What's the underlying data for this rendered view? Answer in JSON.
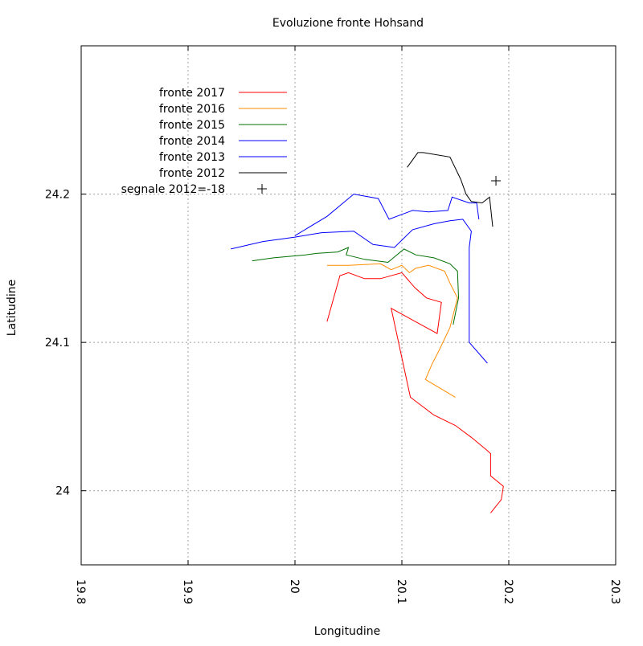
{
  "chart_data": {
    "type": "line",
    "title": "Evoluzione fronte Hohsand",
    "xlabel": "Longitudine",
    "ylabel": "Latitudine",
    "xlim": [
      19.8,
      20.3
    ],
    "ylim": [
      23.95,
      24.3
    ],
    "x_ticks": [
      19.8,
      19.9,
      20.0,
      20.1,
      20.2,
      20.3
    ],
    "x_tick_labels": [
      "19.8",
      "19.9",
      "20",
      "20.1",
      "20.2",
      "20.3"
    ],
    "y_ticks": [
      24.0,
      24.1,
      24.2
    ],
    "y_tick_labels": [
      "24",
      "24.1",
      "24.2"
    ],
    "grid": true,
    "legend_position": "top-left",
    "series": [
      {
        "name": "fronte 2017",
        "color": "#ff0000",
        "points": [
          [
            20.03,
            24.114
          ],
          [
            20.042,
            24.145
          ],
          [
            20.05,
            24.147
          ],
          [
            20.065,
            24.143
          ],
          [
            20.08,
            24.143
          ],
          [
            20.1,
            24.147
          ],
          [
            20.112,
            24.137
          ],
          [
            20.123,
            24.13
          ],
          [
            20.137,
            24.127
          ],
          [
            20.133,
            24.106
          ],
          [
            20.09,
            24.123
          ],
          [
            20.108,
            24.063
          ],
          [
            20.13,
            24.051
          ],
          [
            20.15,
            24.044
          ],
          [
            20.165,
            24.036
          ],
          [
            20.18,
            24.027
          ],
          [
            20.183,
            24.025
          ],
          [
            20.183,
            24.01
          ],
          [
            20.195,
            24.003
          ],
          [
            20.193,
            23.994
          ],
          [
            20.183,
            23.985
          ]
        ]
      },
      {
        "name": "fronte 2016",
        "color": "#ff8c00",
        "points": [
          [
            20.03,
            24.152
          ],
          [
            20.05,
            24.152
          ],
          [
            20.08,
            24.153
          ],
          [
            20.09,
            24.149
          ],
          [
            20.1,
            24.152
          ],
          [
            20.107,
            24.147
          ],
          [
            20.113,
            24.15
          ],
          [
            20.125,
            24.152
          ],
          [
            20.14,
            24.148
          ],
          [
            20.145,
            24.14
          ],
          [
            20.152,
            24.13
          ],
          [
            20.145,
            24.11
          ],
          [
            20.135,
            24.095
          ],
          [
            20.128,
            24.085
          ],
          [
            20.122,
            24.075
          ],
          [
            20.15,
            24.063
          ]
        ]
      },
      {
        "name": "fronte 2015",
        "color": "#007000",
        "points": [
          [
            19.96,
            24.155
          ],
          [
            19.98,
            24.157
          ],
          [
            20.01,
            24.159
          ],
          [
            20.02,
            24.16
          ],
          [
            20.04,
            24.161
          ],
          [
            20.05,
            24.164
          ],
          [
            20.048,
            24.159
          ],
          [
            20.065,
            24.156
          ],
          [
            20.087,
            24.154
          ],
          [
            20.102,
            24.163
          ],
          [
            20.113,
            24.159
          ],
          [
            20.13,
            24.157
          ],
          [
            20.145,
            24.153
          ],
          [
            20.152,
            24.148
          ],
          [
            20.153,
            24.13
          ],
          [
            20.148,
            24.112
          ]
        ]
      },
      {
        "name": "fronte 2014",
        "color": "#0000ff",
        "points": [
          [
            20.0,
            24.172
          ],
          [
            20.03,
            24.185
          ],
          [
            20.055,
            24.2
          ],
          [
            20.078,
            24.197
          ],
          [
            20.088,
            24.183
          ],
          [
            20.11,
            24.189
          ],
          [
            20.125,
            24.188
          ],
          [
            20.143,
            24.189
          ],
          [
            20.147,
            24.198
          ],
          [
            20.163,
            24.194
          ],
          [
            20.17,
            24.194
          ],
          [
            20.172,
            24.183
          ]
        ]
      },
      {
        "name": "fronte 2013",
        "color": "#0000ff",
        "points": [
          [
            19.94,
            24.163
          ],
          [
            19.97,
            24.168
          ],
          [
            20.0,
            24.171
          ],
          [
            20.025,
            24.174
          ],
          [
            20.055,
            24.175
          ],
          [
            20.073,
            24.166
          ],
          [
            20.093,
            24.164
          ],
          [
            20.11,
            24.176
          ],
          [
            20.13,
            24.18
          ],
          [
            20.145,
            24.182
          ],
          [
            20.157,
            24.183
          ],
          [
            20.165,
            24.175
          ],
          [
            20.163,
            24.164
          ],
          [
            20.163,
            24.1
          ],
          [
            20.18,
            24.086
          ]
        ]
      },
      {
        "name": "fronte 2012",
        "color": "#000000",
        "points": [
          [
            20.105,
            24.218
          ],
          [
            20.115,
            24.228
          ],
          [
            20.12,
            24.228
          ],
          [
            20.145,
            24.225
          ],
          [
            20.155,
            24.21
          ],
          [
            20.16,
            24.2
          ],
          [
            20.165,
            24.195
          ],
          [
            20.175,
            24.194
          ],
          [
            20.182,
            24.198
          ],
          [
            20.185,
            24.178
          ]
        ]
      }
    ],
    "markers": [
      {
        "name": "segnale 2012=-18",
        "symbol": "+",
        "color": "#000000",
        "points": [
          [
            20.188,
            24.209
          ]
        ]
      }
    ]
  }
}
